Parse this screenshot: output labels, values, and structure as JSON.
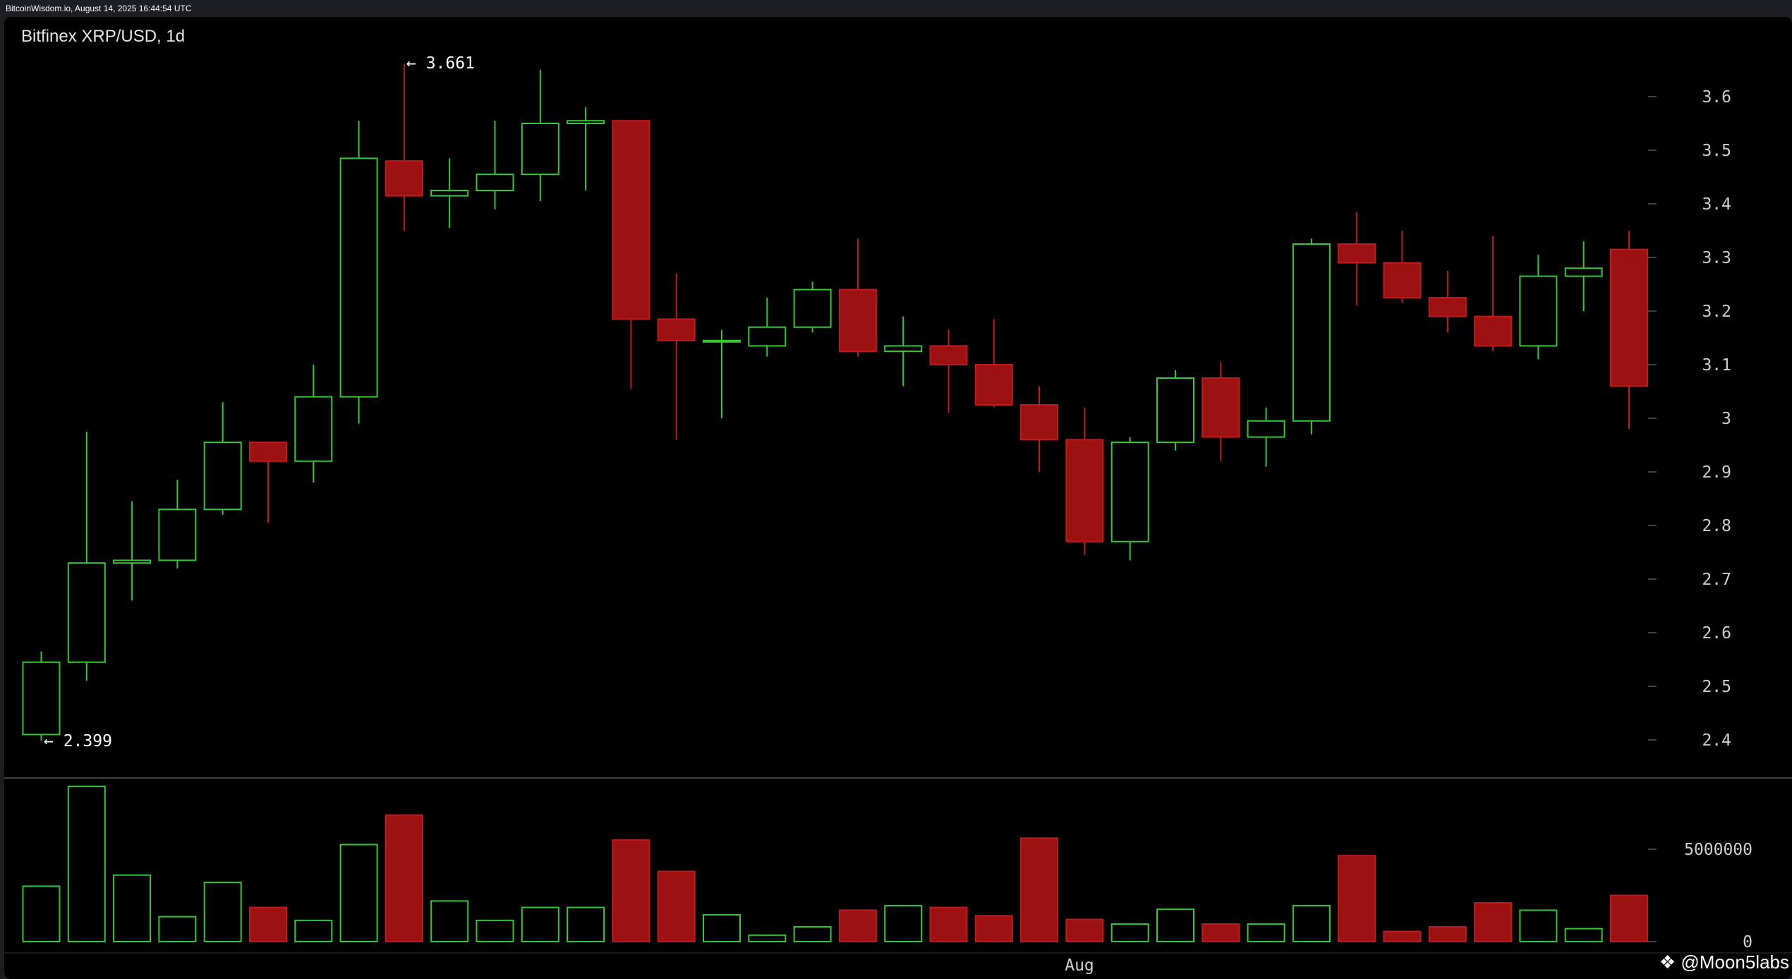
{
  "header": {
    "source_text": "BitcoinWisdom.io, August 14, 2025 16:44:54 UTC"
  },
  "watermark": "@Moon5labs",
  "colors": {
    "up": "#32c832",
    "down": "#9c1111",
    "down_edge": "#c21a1a",
    "background": "#000000",
    "grid_tick": "#555555"
  },
  "chart_data": {
    "type": "candlestick",
    "title": "Bitfinex XRP/USD, 1d",
    "price_ticks": [
      "2.4",
      "2.5",
      "2.6",
      "2.7",
      "2.8",
      "2.9",
      "3",
      "3.1",
      "3.2",
      "3.3",
      "3.4",
      "3.5",
      "3.6"
    ],
    "price_range": [
      2.34,
      3.75
    ],
    "volume_ticks": [
      "0",
      "5000000"
    ],
    "volume_range": [
      0,
      8500000
    ],
    "x_labels": [
      "Aug"
    ],
    "annotations": {
      "high": "← 3.661",
      "low": "← 2.399"
    },
    "candles": [
      {
        "o": 2.41,
        "h": 2.565,
        "l": 2.399,
        "c": 2.545,
        "v": 3000000
      },
      {
        "o": 2.545,
        "h": 2.975,
        "l": 2.51,
        "c": 2.73,
        "v": 8400000
      },
      {
        "o": 2.73,
        "h": 2.845,
        "l": 2.66,
        "c": 2.735,
        "v": 3600000
      },
      {
        "o": 2.735,
        "h": 2.885,
        "l": 2.72,
        "c": 2.83,
        "v": 1350000
      },
      {
        "o": 2.83,
        "h": 3.03,
        "l": 2.82,
        "c": 2.955,
        "v": 3200000
      },
      {
        "o": 2.955,
        "h": 2.955,
        "l": 2.805,
        "c": 2.92,
        "v": 1850000
      },
      {
        "o": 2.92,
        "h": 3.1,
        "l": 2.88,
        "c": 3.04,
        "v": 1150000
      },
      {
        "o": 3.04,
        "h": 3.555,
        "l": 2.99,
        "c": 3.485,
        "v": 5250000
      },
      {
        "o": 3.48,
        "h": 3.661,
        "l": 3.35,
        "c": 3.415,
        "v": 6850000
      },
      {
        "o": 3.415,
        "h": 3.485,
        "l": 3.355,
        "c": 3.425,
        "v": 2200000
      },
      {
        "o": 3.425,
        "h": 3.555,
        "l": 3.39,
        "c": 3.455,
        "v": 1150000
      },
      {
        "o": 3.455,
        "h": 3.65,
        "l": 3.405,
        "c": 3.55,
        "v": 1850000
      },
      {
        "o": 3.55,
        "h": 3.58,
        "l": 3.425,
        "c": 3.555,
        "v": 1850000
      },
      {
        "o": 3.555,
        "h": 3.555,
        "l": 3.055,
        "c": 3.185,
        "v": 5500000
      },
      {
        "o": 3.185,
        "h": 3.27,
        "l": 2.96,
        "c": 3.145,
        "v": 3800000
      },
      {
        "o": 3.145,
        "h": 3.165,
        "l": 3.0,
        "c": 3.145,
        "v": 1450000
      },
      {
        "o": 3.135,
        "h": 3.225,
        "l": 3.115,
        "c": 3.17,
        "v": 350000
      },
      {
        "o": 3.17,
        "h": 3.255,
        "l": 3.16,
        "c": 3.24,
        "v": 800000
      },
      {
        "o": 3.24,
        "h": 3.335,
        "l": 3.115,
        "c": 3.125,
        "v": 1700000
      },
      {
        "o": 3.125,
        "h": 3.19,
        "l": 3.06,
        "c": 3.135,
        "v": 1950000
      },
      {
        "o": 3.135,
        "h": 3.165,
        "l": 3.01,
        "c": 3.1,
        "v": 1850000
      },
      {
        "o": 3.1,
        "h": 3.185,
        "l": 3.02,
        "c": 3.025,
        "v": 1400000
      },
      {
        "o": 3.025,
        "h": 3.06,
        "l": 2.9,
        "c": 2.96,
        "v": 5600000
      },
      {
        "o": 2.96,
        "h": 3.02,
        "l": 2.745,
        "c": 2.77,
        "v": 1200000
      },
      {
        "o": 2.77,
        "h": 2.965,
        "l": 2.735,
        "c": 2.955,
        "v": 950000
      },
      {
        "o": 2.955,
        "h": 3.09,
        "l": 2.94,
        "c": 3.075,
        "v": 1750000
      },
      {
        "o": 3.075,
        "h": 3.105,
        "l": 2.92,
        "c": 2.965,
        "v": 950000
      },
      {
        "o": 2.965,
        "h": 3.02,
        "l": 2.91,
        "c": 2.995,
        "v": 950000
      },
      {
        "o": 2.995,
        "h": 3.335,
        "l": 2.97,
        "c": 3.325,
        "v": 1950000
      },
      {
        "o": 3.325,
        "h": 3.385,
        "l": 3.21,
        "c": 3.29,
        "v": 4650000
      },
      {
        "o": 3.29,
        "h": 3.35,
        "l": 3.215,
        "c": 3.225,
        "v": 550000
      },
      {
        "o": 3.225,
        "h": 3.275,
        "l": 3.16,
        "c": 3.19,
        "v": 800000
      },
      {
        "o": 3.19,
        "h": 3.34,
        "l": 3.125,
        "c": 3.135,
        "v": 2100000
      },
      {
        "o": 3.135,
        "h": 3.305,
        "l": 3.11,
        "c": 3.265,
        "v": 1700000
      },
      {
        "o": 3.265,
        "h": 3.33,
        "l": 3.2,
        "c": 3.28,
        "v": 700000
      },
      {
        "o": 3.315,
        "h": 3.35,
        "l": 2.98,
        "c": 3.06,
        "v": 2500000
      }
    ]
  }
}
